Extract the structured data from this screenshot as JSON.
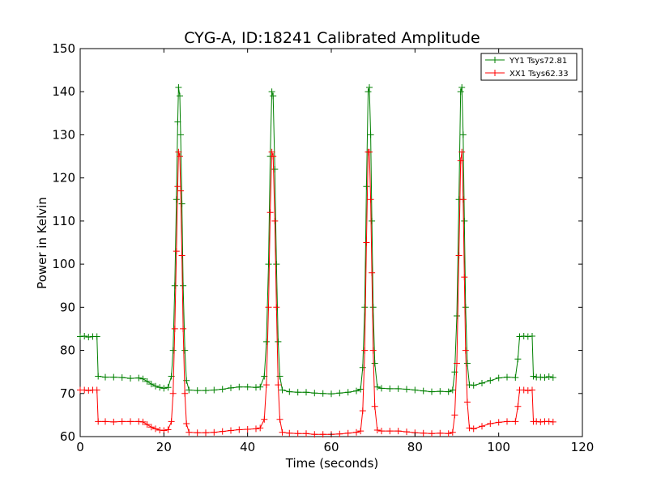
{
  "chart_data": {
    "type": "line",
    "title": "CYG-A, ID:18241 Calibrated Amplitude",
    "xlabel": "Time (seconds)",
    "ylabel": "Power in Kelvin",
    "xlim": [
      0,
      120
    ],
    "ylim": [
      60,
      150
    ],
    "xticks": [
      0,
      20,
      40,
      60,
      80,
      100,
      120
    ],
    "yticks": [
      60,
      70,
      80,
      90,
      100,
      110,
      120,
      130,
      140,
      150
    ],
    "grid": false,
    "legend_position": "top-right",
    "marker": "+",
    "series": [
      {
        "name": "YY1 Tsys72.81",
        "color": "#008000",
        "points": [
          [
            0,
            83.2
          ],
          [
            1,
            83.3
          ],
          [
            2,
            83.1
          ],
          [
            3,
            83.2
          ],
          [
            4,
            83.2
          ],
          [
            4.3,
            74
          ],
          [
            6,
            73.8
          ],
          [
            8,
            73.8
          ],
          [
            10,
            73.7
          ],
          [
            12,
            73.5
          ],
          [
            14,
            73.6
          ],
          [
            15,
            73.4
          ],
          [
            16,
            72.8
          ],
          [
            17,
            72.2
          ],
          [
            18,
            71.7
          ],
          [
            19,
            71.4
          ],
          [
            20,
            71.2
          ],
          [
            21,
            71.4
          ],
          [
            21.8,
            74
          ],
          [
            22.2,
            80
          ],
          [
            22.6,
            95
          ],
          [
            23,
            115
          ],
          [
            23.3,
            133
          ],
          [
            23.5,
            141
          ],
          [
            23.8,
            139
          ],
          [
            24,
            130
          ],
          [
            24.3,
            114
          ],
          [
            24.6,
            95
          ],
          [
            25,
            80
          ],
          [
            25.4,
            73
          ],
          [
            26,
            70.8
          ],
          [
            28,
            70.7
          ],
          [
            30,
            70.7
          ],
          [
            32,
            70.8
          ],
          [
            34,
            71
          ],
          [
            36,
            71.3
          ],
          [
            38,
            71.5
          ],
          [
            40,
            71.5
          ],
          [
            42,
            71.4
          ],
          [
            43,
            71.5
          ],
          [
            44,
            74
          ],
          [
            44.5,
            82
          ],
          [
            45,
            100
          ],
          [
            45.4,
            125
          ],
          [
            45.8,
            140
          ],
          [
            46.1,
            139
          ],
          [
            46.5,
            122
          ],
          [
            46.9,
            100
          ],
          [
            47.3,
            82
          ],
          [
            47.7,
            74
          ],
          [
            48.3,
            70.8
          ],
          [
            50,
            70.4
          ],
          [
            52,
            70.3
          ],
          [
            54,
            70.3
          ],
          [
            56,
            70.1
          ],
          [
            58,
            70
          ],
          [
            60,
            69.9
          ],
          [
            62,
            70.1
          ],
          [
            64,
            70.3
          ],
          [
            66,
            70.6
          ],
          [
            67,
            71
          ],
          [
            67.5,
            76
          ],
          [
            68,
            90
          ],
          [
            68.4,
            118
          ],
          [
            68.8,
            140
          ],
          [
            69.1,
            141
          ],
          [
            69.4,
            130
          ],
          [
            69.7,
            110
          ],
          [
            70,
            90
          ],
          [
            70.4,
            77
          ],
          [
            71,
            71.5
          ],
          [
            72,
            71.2
          ],
          [
            74,
            71.1
          ],
          [
            76,
            71.1
          ],
          [
            78,
            71
          ],
          [
            80,
            70.8
          ],
          [
            82,
            70.6
          ],
          [
            84,
            70.4
          ],
          [
            86,
            70.5
          ],
          [
            88,
            70.4
          ],
          [
            89,
            70.8
          ],
          [
            89.5,
            75
          ],
          [
            90,
            88
          ],
          [
            90.5,
            115
          ],
          [
            90.9,
            140
          ],
          [
            91.2,
            141
          ],
          [
            91.5,
            130
          ],
          [
            91.8,
            110
          ],
          [
            92.1,
            90
          ],
          [
            92.5,
            77
          ],
          [
            93,
            72
          ],
          [
            94,
            71.9
          ],
          [
            96,
            72.4
          ],
          [
            98,
            73
          ],
          [
            100,
            73.6
          ],
          [
            102,
            73.8
          ],
          [
            104,
            73.7
          ],
          [
            104.6,
            78
          ],
          [
            105,
            83.2
          ],
          [
            106,
            83.3
          ],
          [
            107,
            83.2
          ],
          [
            108,
            83.3
          ],
          [
            108.3,
            74
          ],
          [
            109,
            73.8
          ],
          [
            110,
            73.8
          ],
          [
            111,
            73.7
          ],
          [
            112,
            73.9
          ],
          [
            113,
            73.7
          ]
        ]
      },
      {
        "name": "XX1 Tsys62.33",
        "color": "#ff0000",
        "points": [
          [
            0,
            70.8
          ],
          [
            1,
            70.8
          ],
          [
            2,
            70.7
          ],
          [
            3,
            70.8
          ],
          [
            4,
            70.8
          ],
          [
            4.3,
            63.5
          ],
          [
            6,
            63.5
          ],
          [
            8,
            63.4
          ],
          [
            10,
            63.5
          ],
          [
            12,
            63.5
          ],
          [
            14,
            63.5
          ],
          [
            15,
            63.4
          ],
          [
            16,
            62.8
          ],
          [
            17,
            62.2
          ],
          [
            18,
            61.8
          ],
          [
            19,
            61.5
          ],
          [
            20,
            61.4
          ],
          [
            21,
            61.6
          ],
          [
            21.8,
            63.5
          ],
          [
            22.2,
            70
          ],
          [
            22.6,
            85
          ],
          [
            23,
            103
          ],
          [
            23.3,
            118
          ],
          [
            23.5,
            126
          ],
          [
            23.8,
            125
          ],
          [
            24,
            117
          ],
          [
            24.3,
            102
          ],
          [
            24.6,
            85
          ],
          [
            25,
            70
          ],
          [
            25.4,
            63
          ],
          [
            26,
            61
          ],
          [
            28,
            60.9
          ],
          [
            30,
            60.9
          ],
          [
            32,
            61
          ],
          [
            34,
            61.2
          ],
          [
            36,
            61.4
          ],
          [
            38,
            61.6
          ],
          [
            40,
            61.7
          ],
          [
            42,
            61.8
          ],
          [
            43,
            62
          ],
          [
            44,
            64
          ],
          [
            44.5,
            72
          ],
          [
            45,
            90
          ],
          [
            45.4,
            112
          ],
          [
            45.8,
            126
          ],
          [
            46.1,
            125
          ],
          [
            46.5,
            110
          ],
          [
            46.9,
            90
          ],
          [
            47.3,
            72
          ],
          [
            47.7,
            64
          ],
          [
            48.3,
            61
          ],
          [
            50,
            60.8
          ],
          [
            52,
            60.7
          ],
          [
            54,
            60.7
          ],
          [
            56,
            60.5
          ],
          [
            58,
            60.5
          ],
          [
            60,
            60.5
          ],
          [
            62,
            60.6
          ],
          [
            64,
            60.8
          ],
          [
            66,
            61
          ],
          [
            67,
            61.3
          ],
          [
            67.5,
            66
          ],
          [
            68,
            80
          ],
          [
            68.4,
            105
          ],
          [
            68.8,
            126
          ],
          [
            69.1,
            126
          ],
          [
            69.4,
            115
          ],
          [
            69.7,
            98
          ],
          [
            70,
            80
          ],
          [
            70.4,
            67
          ],
          [
            71,
            61.5
          ],
          [
            72,
            61.3
          ],
          [
            74,
            61.3
          ],
          [
            76,
            61.3
          ],
          [
            78,
            61.1
          ],
          [
            80,
            60.9
          ],
          [
            82,
            60.8
          ],
          [
            84,
            60.7
          ],
          [
            86,
            60.8
          ],
          [
            88,
            60.7
          ],
          [
            89,
            61
          ],
          [
            89.5,
            65
          ],
          [
            90,
            77
          ],
          [
            90.5,
            102
          ],
          [
            90.9,
            124
          ],
          [
            91.2,
            126
          ],
          [
            91.5,
            115
          ],
          [
            91.8,
            97
          ],
          [
            92.1,
            80
          ],
          [
            92.5,
            68
          ],
          [
            93,
            62
          ],
          [
            94,
            61.8
          ],
          [
            96,
            62.4
          ],
          [
            98,
            63
          ],
          [
            100,
            63.3
          ],
          [
            102,
            63.5
          ],
          [
            104,
            63.5
          ],
          [
            104.6,
            67
          ],
          [
            105,
            70.8
          ],
          [
            106,
            70.8
          ],
          [
            107,
            70.7
          ],
          [
            108,
            70.8
          ],
          [
            108.3,
            63.5
          ],
          [
            109,
            63.5
          ],
          [
            110,
            63.4
          ],
          [
            111,
            63.5
          ],
          [
            112,
            63.5
          ],
          [
            113,
            63.4
          ]
        ]
      }
    ]
  }
}
